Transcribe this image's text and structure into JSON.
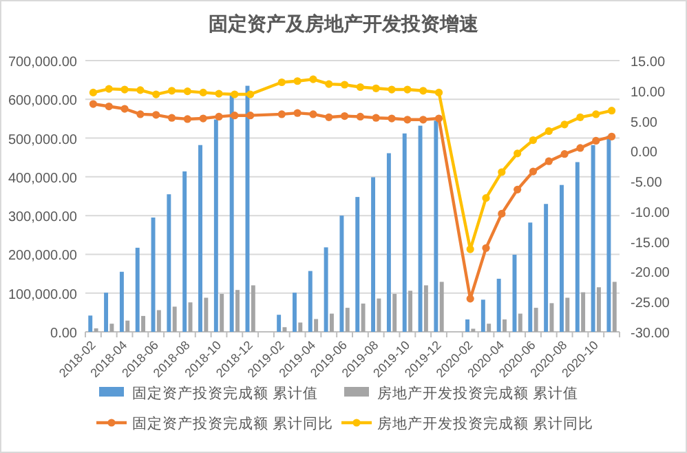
{
  "chart_data": {
    "type": "bar",
    "title": "固定资产及房地产开发投资增速",
    "categories": [
      "2018-02",
      null,
      "2018-04",
      null,
      "2018-06",
      null,
      "2018-08",
      null,
      "2018-10",
      null,
      "2018-12",
      null,
      "2019-02",
      null,
      "2019-04",
      null,
      "2019-06",
      null,
      "2019-08",
      null,
      "2019-10",
      null,
      "2019-12",
      null,
      "2020-02",
      null,
      "2020-04",
      null,
      "2020-06",
      null,
      "2020-08",
      null,
      "2020-10",
      null
    ],
    "series": [
      {
        "name": "固定资产投资完成额 累计值",
        "color": "#5b9bd5",
        "values": [
          42000,
          101000,
          155000,
          217000,
          295000,
          355000,
          414000,
          482000,
          548000,
          610000,
          635000,
          null,
          44000,
          101000,
          157000,
          218000,
          300000,
          348000,
          399000,
          461000,
          512000,
          532000,
          545000,
          null,
          32000,
          83000,
          137000,
          199000,
          282000,
          330000,
          379000,
          438000,
          482000,
          506000
        ]
      },
      {
        "name": "房地产开发投资完成额 累计值",
        "color": "#a5a5a5",
        "values": [
          9000,
          21000,
          29000,
          41000,
          56000,
          65000,
          76000,
          88000,
          98000,
          108000,
          120000,
          null,
          12000,
          24000,
          33000,
          47000,
          62000,
          73000,
          86000,
          98000,
          106000,
          120000,
          129000,
          null,
          8000,
          21000,
          32000,
          47000,
          62000,
          74000,
          88000,
          102000,
          115000,
          129000
        ]
      },
      {
        "name": "固定资产投资完成额 累计同比",
        "type": "line",
        "axis": "y2",
        "marker": "circle",
        "color": "#ed7d31",
        "values": [
          7.8,
          7.4,
          7.0,
          6.1,
          6.0,
          5.5,
          5.3,
          5.4,
          5.7,
          5.9,
          5.9,
          null,
          6.1,
          6.3,
          6.1,
          5.6,
          5.8,
          5.7,
          5.5,
          5.4,
          5.2,
          5.2,
          5.4,
          null,
          -24.5,
          -16.1,
          -10.4,
          -6.4,
          -3.4,
          -1.7,
          -0.5,
          0.5,
          1.7,
          2.4
        ]
      },
      {
        "name": "房地产开发投资完成额 累计同比",
        "type": "line",
        "axis": "y2",
        "marker": "circle",
        "color": "#ffc000",
        "values": [
          9.7,
          10.3,
          10.2,
          10.1,
          9.4,
          10.0,
          9.9,
          9.7,
          9.5,
          9.4,
          9.4,
          null,
          11.4,
          11.6,
          11.9,
          11.1,
          11.0,
          10.6,
          10.4,
          10.2,
          10.2,
          10.0,
          9.7,
          null,
          -16.3,
          -7.8,
          -3.5,
          -0.4,
          1.8,
          3.3,
          4.4,
          5.6,
          6.1,
          6.7
        ]
      }
    ],
    "ylim": [
      0,
      700000
    ],
    "yticks": [
      {
        "value": 0,
        "label": "0.00"
      },
      {
        "value": 100000,
        "label": "100,000.00"
      },
      {
        "value": 200000,
        "label": "200,000.00"
      },
      {
        "value": 300000,
        "label": "300,000.00"
      },
      {
        "value": 400000,
        "label": "400,000.00"
      },
      {
        "value": 500000,
        "label": "500,000.00"
      },
      {
        "value": 600000,
        "label": "600,000.00"
      },
      {
        "value": 700000,
        "label": "700,000.00"
      }
    ],
    "y2lim": [
      -30,
      15
    ],
    "y2ticks": [
      {
        "value": -30,
        "label": "-30.00"
      },
      {
        "value": -25,
        "label": "-25.00"
      },
      {
        "value": -20,
        "label": "-20.00"
      },
      {
        "value": -15,
        "label": "-15.00"
      },
      {
        "value": -10,
        "label": "-10.00"
      },
      {
        "value": -5,
        "label": "-5.00"
      },
      {
        "value": 0,
        "label": "0.00"
      },
      {
        "value": 5,
        "label": "5.00"
      },
      {
        "value": 10,
        "label": "10.00"
      },
      {
        "value": 15,
        "label": "15.00"
      }
    ],
    "grid": "y",
    "legend": "bottom"
  }
}
